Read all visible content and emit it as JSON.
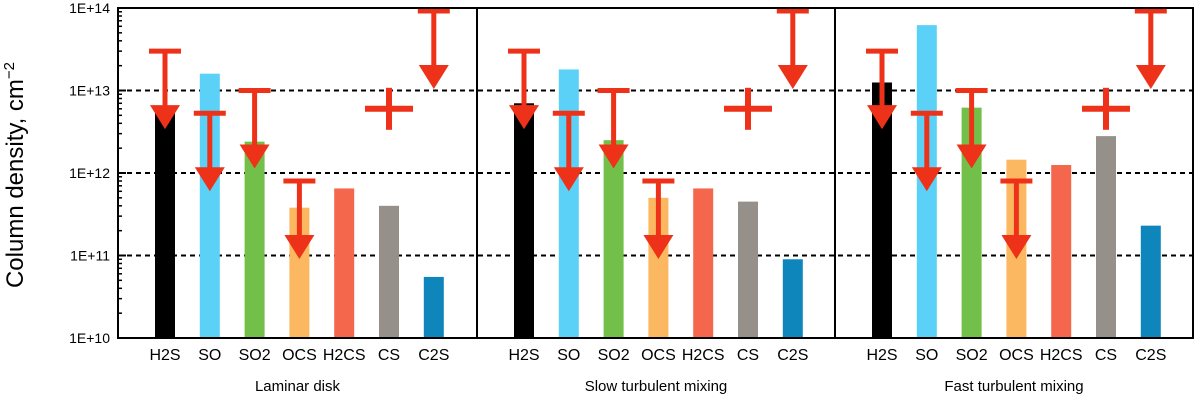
{
  "chart_data": {
    "type": "bar",
    "ylabel": "Column density, cm",
    "ylabel_superscript": "−2",
    "yscale": "log",
    "ylim": [
      10000000000.0,
      100000000000000.0
    ],
    "yticks": [
      {
        "value": 10000000000.0,
        "label": "1E+10"
      },
      {
        "value": 100000000000.0,
        "label": "1E+11"
      },
      {
        "value": 1000000000000.0,
        "label": "1E+12"
      },
      {
        "value": 10000000000000.0,
        "label": "1E+13"
      },
      {
        "value": 100000000000000.0,
        "label": "1E+14"
      }
    ],
    "gridlines": [
      100000000000.0,
      1000000000000.0,
      10000000000000.0
    ],
    "categories": [
      "H2S",
      "SO",
      "SO2",
      "OCS",
      "H2CS",
      "CS",
      "C2S"
    ],
    "colors": {
      "H2S": "#000000",
      "SO": "#5bd1f7",
      "SO2": "#72c04a",
      "OCS": "#fbb861",
      "H2CS": "#f5674c",
      "CS": "#959089",
      "C2S": "#0e86bb"
    },
    "marker_color": "#ee3219",
    "panels": [
      {
        "title": "Laminar disk",
        "values": [
          6500000000000.0,
          16000000000000.0,
          2400000000000.0,
          380000000000.0,
          650000000000.0,
          400000000000.0,
          55000000000.0
        ],
        "upper_limits": [
          {
            "category": "H2S",
            "value": 30000000000000.0
          },
          {
            "category": "SO",
            "value": 5300000000000.0
          },
          {
            "category": "SO2",
            "value": 10000000000000.0
          },
          {
            "category": "OCS",
            "value": 800000000000.0
          },
          {
            "category": "C2S",
            "value": 100000000000000.0
          }
        ],
        "detections": [
          {
            "category": "CS",
            "value": 6000000000000.0
          }
        ]
      },
      {
        "title": "Slow turbulent mixing",
        "values": [
          7000000000000.0,
          18000000000000.0,
          2500000000000.0,
          500000000000.0,
          650000000000.0,
          450000000000.0,
          90000000000.0
        ],
        "upper_limits": [
          {
            "category": "H2S",
            "value": 30000000000000.0
          },
          {
            "category": "SO",
            "value": 5300000000000.0
          },
          {
            "category": "SO2",
            "value": 10000000000000.0
          },
          {
            "category": "OCS",
            "value": 800000000000.0
          },
          {
            "category": "C2S",
            "value": 100000000000000.0
          }
        ],
        "detections": [
          {
            "category": "CS",
            "value": 6000000000000.0
          }
        ]
      },
      {
        "title": "Fast turbulent mixing",
        "values": [
          12500000000000.0,
          62000000000000.0,
          6200000000000.0,
          1450000000000.0,
          1250000000000.0,
          2800000000000.0,
          230000000000.0
        ],
        "upper_limits": [
          {
            "category": "H2S",
            "value": 30000000000000.0
          },
          {
            "category": "SO",
            "value": 5300000000000.0
          },
          {
            "category": "SO2",
            "value": 10000000000000.0
          },
          {
            "category": "OCS",
            "value": 800000000000.0
          },
          {
            "category": "C2S",
            "value": 100000000000000.0
          }
        ],
        "detections": [
          {
            "category": "CS",
            "value": 6000000000000.0
          }
        ]
      }
    ]
  }
}
